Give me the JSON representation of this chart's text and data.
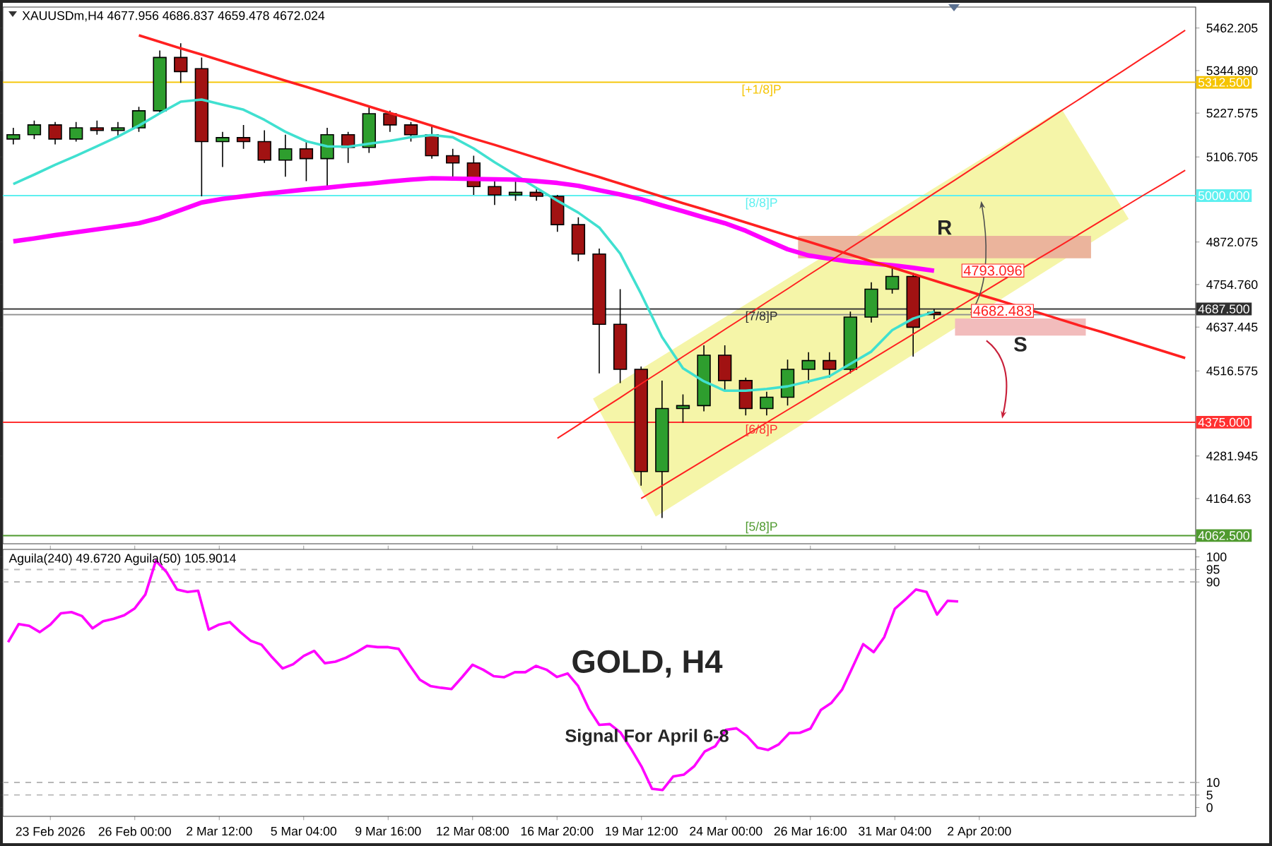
{
  "chart_data": [
    {
      "type": "candlestick",
      "title": "XAUUSDm,H4 4677.956 4686.837 4659.478 4672.024",
      "categories": [
        null,
        null,
        null,
        null,
        null,
        null,
        null,
        null,
        null,
        null,
        null,
        null,
        null,
        null,
        null,
        null,
        null,
        null,
        null,
        null,
        null,
        null,
        null,
        null,
        null,
        null,
        null,
        null,
        null,
        null,
        null,
        null,
        null,
        null,
        null,
        null,
        null,
        null,
        null,
        null,
        null,
        null,
        null,
        null,
        null,
        null,
        null,
        null,
        null,
        null,
        null,
        null,
        null,
        null,
        null,
        null,
        null
      ],
      "ohlc": [
        [
          5156,
          5187,
          5141,
          5168
        ],
        [
          5168,
          5207,
          5156,
          5195
        ],
        [
          5195,
          5203,
          5141,
          5156
        ],
        [
          5156,
          5203,
          5149,
          5187
        ],
        [
          5187,
          5207,
          5168,
          5180
        ],
        [
          5180,
          5203,
          5164,
          5187
        ],
        [
          5187,
          5245,
          5176,
          5234
        ],
        [
          5234,
          5400,
          5226,
          5381
        ],
        [
          5381,
          5420,
          5311,
          5342
        ],
        [
          5350,
          5381,
          4998,
          5149
        ],
        [
          5149,
          5176,
          5079,
          5160
        ],
        [
          5160,
          5195,
          5129,
          5149
        ],
        [
          5149,
          5180,
          5090,
          5098
        ],
        [
          5098,
          5168,
          5052,
          5129
        ],
        [
          5129,
          5149,
          5040,
          5102
        ],
        [
          5102,
          5187,
          5021,
          5168
        ],
        [
          5168,
          5176,
          5090,
          5133
        ],
        [
          5133,
          5245,
          5118,
          5226
        ],
        [
          5226,
          5234,
          5176,
          5195
        ],
        [
          5195,
          5203,
          5149,
          5168
        ],
        [
          5168,
          5195,
          5102,
          5110
        ],
        [
          5110,
          5129,
          5052,
          5090
        ],
        [
          5090,
          5110,
          5002,
          5025
        ],
        [
          5025,
          5040,
          4974,
          5002
        ],
        [
          5002,
          5040,
          4986,
          5009
        ],
        [
          5009,
          5021,
          4986,
          4998
        ],
        [
          4998,
          5002,
          4900,
          4920
        ],
        [
          4920,
          4940,
          4819,
          4839
        ],
        [
          4839,
          4854,
          4510,
          4645
        ],
        [
          4645,
          4742,
          4483,
          4521
        ],
        [
          4521,
          4529,
          4200,
          4239
        ],
        [
          4239,
          4490,
          4111,
          4413
        ],
        [
          4413,
          4452,
          4374,
          4421
        ],
        [
          4421,
          4587,
          4405,
          4560
        ],
        [
          4560,
          4587,
          4460,
          4490
        ],
        [
          4490,
          4498,
          4394,
          4413
        ],
        [
          4413,
          4459,
          4394,
          4444
        ],
        [
          4444,
          4548,
          4421,
          4521
        ],
        [
          4521,
          4568,
          4483,
          4545
        ],
        [
          4545,
          4568,
          4498,
          4521
        ],
        [
          4521,
          4680,
          4510,
          4665
        ],
        [
          4665,
          4761,
          4650,
          4742
        ],
        [
          4742,
          4804,
          4730,
          4777
        ],
        [
          4777,
          4788,
          4556,
          4637
        ],
        [
          4677.956,
          4686.837,
          4659.478,
          4672.024
        ],
        null,
        null,
        null,
        null,
        null,
        null,
        null,
        null,
        null,
        null,
        null,
        null
      ],
      "series": [
        {
          "type": "line",
          "color": "#40e0d0",
          "values": [
            5032,
            5058,
            5085,
            5110,
            5136,
            5163,
            5193,
            5227,
            5259,
            5265,
            5251,
            5237,
            5209,
            5176,
            5150,
            5136,
            5135,
            5143,
            5151,
            5161,
            5167,
            5161,
            5130,
            5092,
            5057,
            5021,
            4986,
            4953,
            4912,
            4840,
            4729,
            4610,
            4524,
            4488,
            4462,
            4462,
            4467,
            4474,
            4488,
            4502,
            4536,
            4570,
            4629,
            4661,
            4680,
            null,
            null,
            null,
            null,
            null,
            null,
            null,
            null,
            null,
            null,
            null,
            null
          ]
        },
        {
          "type": "line",
          "color": "#ff00ff",
          "values": [
            4874,
            4882,
            4891,
            4899,
            4907,
            4915,
            4924,
            4939,
            4960,
            4981,
            4991,
            4998,
            5005,
            5011,
            5017,
            5022,
            5028,
            5033,
            5039,
            5044,
            5048,
            5047,
            5046,
            5045,
            5044,
            5040,
            5035,
            5027,
            5015,
            5003,
            4990,
            4973,
            4957,
            4940,
            4924,
            4903,
            4877,
            4852,
            4835,
            4826,
            4818,
            4813,
            4808,
            4801,
            4793,
            null,
            null,
            null,
            null,
            null,
            null,
            null,
            null,
            null,
            null,
            null,
            null
          ]
        },
        {
          "type": "line",
          "color": "#ff2020",
          "values": [
            null,
            null,
            null,
            null,
            null,
            null,
            5442,
            5424,
            5406,
            5389,
            5371,
            5353,
            5335,
            5317,
            5300,
            5282,
            5264,
            5246,
            5228,
            5211,
            5193,
            5175,
            5157,
            5140,
            5122,
            5104,
            5086,
            5068,
            5051,
            5033,
            5015,
            4997,
            4979,
            4962,
            4944,
            4926,
            4908,
            4890,
            4873,
            4855,
            4837,
            4819,
            4802,
            4784,
            4766,
            4748,
            4730,
            4713,
            4695,
            4677,
            4659,
            4641,
            4624,
            4606,
            4588,
            4570,
            4552
          ]
        },
        {
          "type": "line",
          "color": "#ff2020",
          "values": [
            null,
            null,
            null,
            null,
            null,
            null,
            null,
            null,
            null,
            null,
            null,
            null,
            null,
            null,
            null,
            null,
            null,
            null,
            null,
            null,
            null,
            null,
            null,
            null,
            null,
            null,
            4331,
            4368,
            4406,
            4443,
            4481,
            4518,
            4556,
            4593,
            4631,
            4668,
            4706,
            4743,
            4781,
            4818,
            4856,
            4893,
            4931,
            4968,
            5006,
            5043,
            5081,
            5118,
            5156,
            5193,
            5231,
            5268,
            5306,
            5343,
            5381,
            5418,
            5456
          ]
        },
        {
          "type": "line",
          "color": "#ff2020",
          "values": [
            null,
            null,
            null,
            null,
            null,
            null,
            null,
            null,
            null,
            null,
            null,
            null,
            null,
            null,
            null,
            null,
            null,
            null,
            null,
            null,
            null,
            null,
            null,
            null,
            null,
            null,
            null,
            null,
            null,
            null,
            4165,
            4200,
            4235,
            4270,
            4305,
            4339,
            4374,
            4409,
            4444,
            4479,
            4513,
            4548,
            4583,
            4618,
            4653,
            4687,
            4722,
            4757,
            4792,
            4827,
            4861,
            4896,
            4931,
            4966,
            5001,
            5035,
            5070
          ]
        }
      ],
      "ylim": [
        4040,
        5520
      ],
      "yticks": [
        5462.205,
        {
          "value": 5344.89,
          "label": "5344.890"
        },
        5227.575,
        5106.705,
        4872.075,
        {
          "value": 4754.76,
          "label": "4754.760"
        },
        4637.445,
        4516.575,
        4281.945,
        4164.63
      ],
      "tick_labels": "y",
      "ref_lines": [
        {
          "axis": "y",
          "value": 5312.5,
          "label": "5312.500",
          "color": "#f5c400"
        },
        {
          "axis": "y",
          "value": 5000,
          "label": "5000.000",
          "color": "#5ef0f0"
        },
        {
          "axis": "y",
          "value": 4687.5,
          "label": "4687.500",
          "color": "#303030"
        },
        {
          "axis": "y",
          "value": 4672.024,
          "color": "#909090"
        },
        {
          "axis": "y",
          "value": 4375,
          "label": "4375.000",
          "color": "#ff3030"
        },
        {
          "axis": "y",
          "value": 4062.5,
          "label": "4062.500",
          "color": "#4f9a2f"
        }
      ],
      "bands": [
        {
          "axis": "y",
          "from": 4827,
          "to": 4889,
          "label": "R",
          "color": "#ebb49c"
        },
        {
          "axis": "y",
          "from": 4614,
          "to": 4661,
          "label": "S",
          "color": "#f2bcbc"
        }
      ],
      "annotations": [
        {
          "text": "[+1/8]P",
          "y": 5312.5
        },
        {
          "text": "[8/8]P",
          "y": 5000
        },
        {
          "text": "[7/8]P",
          "y": 4687.5
        },
        {
          "text": "[6/8]P",
          "y": 4375
        },
        {
          "text": "[5/8]P",
          "y": 4062.5
        },
        "4793.096",
        "4682.483"
      ]
    },
    {
      "type": "line",
      "title": "Aguila(240) 49.6720 Aguila(50) 105.9014",
      "categories": [
        null,
        null,
        null,
        null,
        "23 Feb 2026",
        null,
        null,
        null,
        null,
        null,
        null,
        null,
        "26 Feb 00:00",
        null,
        null,
        null,
        null,
        null,
        null,
        null,
        "2 Mar 12:00",
        null,
        null,
        null,
        null,
        null,
        null,
        null,
        "5 Mar 04:00",
        null,
        null,
        null,
        null,
        null,
        null,
        null,
        "9 Mar 16:00",
        null,
        null,
        null,
        null,
        null,
        null,
        null,
        "12 Mar 08:00",
        null,
        null,
        null,
        null,
        null,
        null,
        null,
        "16 Mar 20:00",
        null,
        null,
        null,
        null,
        null,
        null,
        null,
        "19 Mar 12:00",
        null,
        null,
        null,
        null,
        null,
        null,
        null,
        "24 Mar 00:00",
        null,
        null,
        null,
        null,
        null,
        null,
        null,
        "26 Mar 16:00",
        null,
        null,
        null,
        null,
        null,
        null,
        null,
        "31 Mar 04:00",
        null,
        null,
        null,
        null,
        null,
        null,
        null,
        "2 Apr 20:00",
        null,
        null,
        null,
        null,
        null,
        null,
        null,
        null,
        null,
        null,
        null,
        null,
        null,
        null,
        null,
        null,
        null,
        null,
        null,
        null
      ],
      "series": [
        {
          "color": "#ff00ff",
          "values": [
            66.0,
            73.2,
            72.5,
            70.0,
            73,
            77.5,
            78.0,
            76.4,
            71.5,
            74.3,
            75.3,
            76.7,
            79.5,
            85,
            98.5,
            94.0,
            87,
            86,
            86.5,
            71,
            73,
            74,
            70,
            66.5,
            65,
            60,
            55.5,
            57.2,
            60.5,
            62.5,
            57.6,
            58.2,
            59.8,
            62,
            64.5,
            64,
            64,
            63.3,
            57,
            51,
            48.5,
            47.8,
            47.3,
            52,
            57,
            55,
            52.4,
            52,
            54,
            54,
            56.5,
            55,
            52.1,
            53.5,
            48.5,
            39.5,
            33,
            33.3,
            30,
            23.5,
            16.4,
            7.5,
            7,
            12.4,
            13.1,
            16.5,
            22.4,
            24.5,
            31,
            31.6,
            28.5,
            23.9,
            23,
            25.2,
            29.7,
            29.8,
            31.5,
            39,
            41.8,
            47,
            56,
            65.2,
            62,
            68,
            79.3,
            83,
            87,
            86,
            77,
            82.5,
            82.2,
            null,
            null,
            null,
            null,
            null,
            null,
            null,
            null,
            null,
            null,
            null,
            null,
            null,
            null,
            null,
            null,
            null,
            null,
            null,
            null,
            null,
            null
          ]
        }
      ],
      "ylim": [
        -3.5,
        103
      ],
      "yticks": [
        0,
        5,
        10,
        90,
        95,
        100
      ],
      "ref_lines": [
        {
          "axis": "y",
          "value": 5,
          "color": "#b8b8b8",
          "line_style": "dashed"
        },
        {
          "axis": "y",
          "value": 10,
          "color": "#b8b8b8",
          "line_style": "dashed"
        },
        {
          "axis": "y",
          "value": 90,
          "color": "#b8b8b8",
          "line_style": "dashed"
        },
        {
          "axis": "y",
          "value": 95,
          "color": "#b8b8b8",
          "line_style": "dashed"
        }
      ],
      "annotations": [
        "GOLD, H4",
        "Signal For April 6-8"
      ]
    }
  ]
}
